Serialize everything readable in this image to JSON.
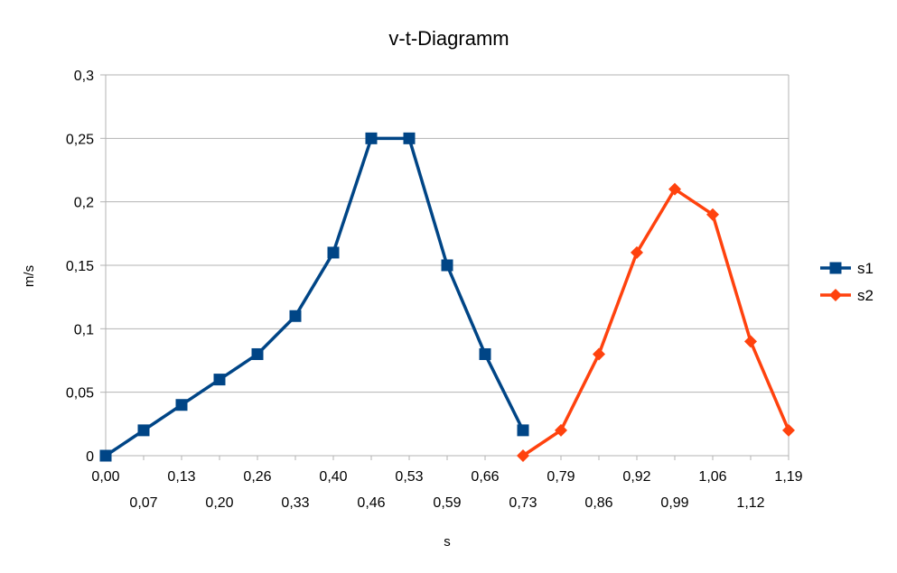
{
  "chart_data": {
    "type": "line",
    "title": "v-t-Diagramm",
    "xlabel": "s",
    "ylabel": "m/s",
    "ylim": [
      0,
      0.3
    ],
    "y_ticks": [
      "0",
      "0,05",
      "0,1",
      "0,15",
      "0,2",
      "0,25",
      "0,3"
    ],
    "categories": [
      "0,00",
      "0,07",
      "0,13",
      "0,20",
      "0,26",
      "0,33",
      "0,40",
      "0,46",
      "0,53",
      "0,59",
      "0,66",
      "0,73",
      "0,79",
      "0,86",
      "0,92",
      "0,99",
      "1,06",
      "1,12",
      "1,19"
    ],
    "grid": true,
    "legend": "right",
    "series": [
      {
        "name": "s1",
        "color": "#004586",
        "marker": "square",
        "values": [
          0,
          0.02,
          0.04,
          0.06,
          0.08,
          0.11,
          0.16,
          0.25,
          0.25,
          0.15,
          0.08,
          0.02,
          null,
          null,
          null,
          null,
          null,
          null,
          null
        ]
      },
      {
        "name": "s2",
        "color": "#ff420e",
        "marker": "diamond",
        "values": [
          null,
          null,
          null,
          null,
          null,
          null,
          null,
          null,
          null,
          null,
          null,
          0,
          0.02,
          0.08,
          0.16,
          0.21,
          0.19,
          0.09,
          0.02
        ]
      }
    ]
  }
}
